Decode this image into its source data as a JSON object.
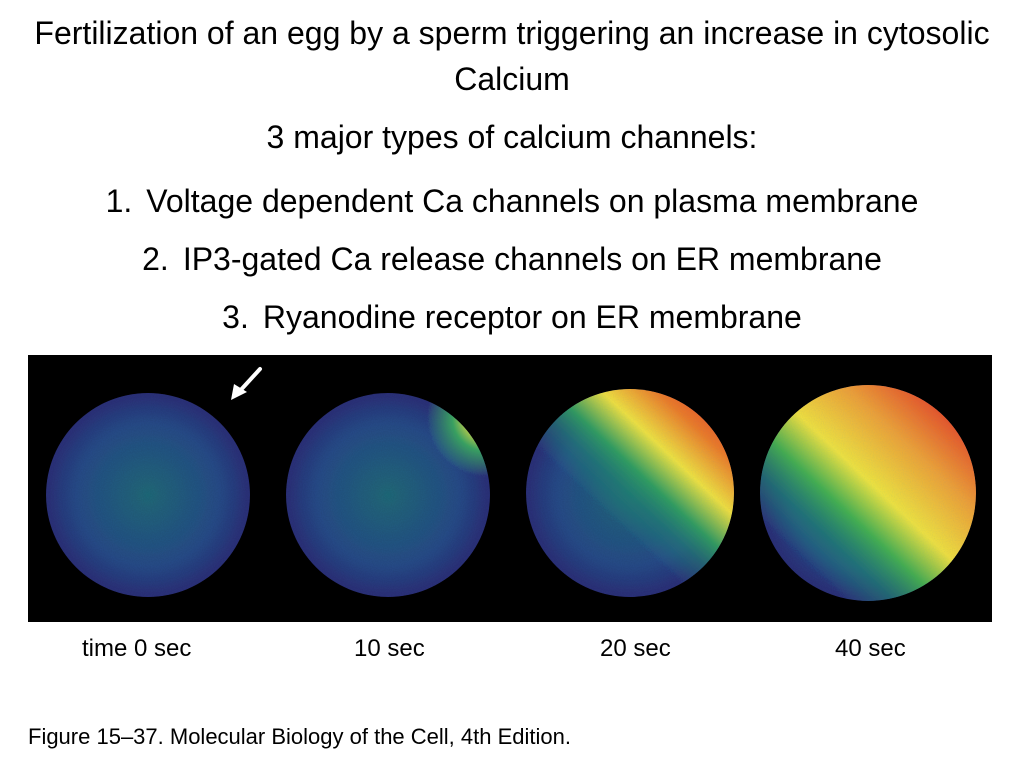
{
  "slide": {
    "title": "Fertilization of an egg by a sperm triggering an increase in cytosolic Calcium",
    "subtitle": "3 major types of calcium channels:",
    "items": [
      {
        "num": "1.",
        "text": "Voltage dependent Ca channels on plasma membrane"
      },
      {
        "num": "2.",
        "text": "IP3-gated Ca release channels on ER membrane"
      },
      {
        "num": "3.",
        "text": "Ryanodine receptor on ER membrane"
      }
    ]
  },
  "figure": {
    "time_labels": [
      "time  0 sec",
      "10 sec",
      "20 sec",
      "40 sec"
    ],
    "caption": "Figure 15–37. Molecular Biology of the Cell, 4th Edition.",
    "colors": {
      "background": "#000000",
      "low": "#2a3f8f",
      "mid": "#1c8a6a",
      "high_yellow": "#f2e23a",
      "high_red": "#e4261c",
      "arrow": "#ffffff"
    }
  }
}
